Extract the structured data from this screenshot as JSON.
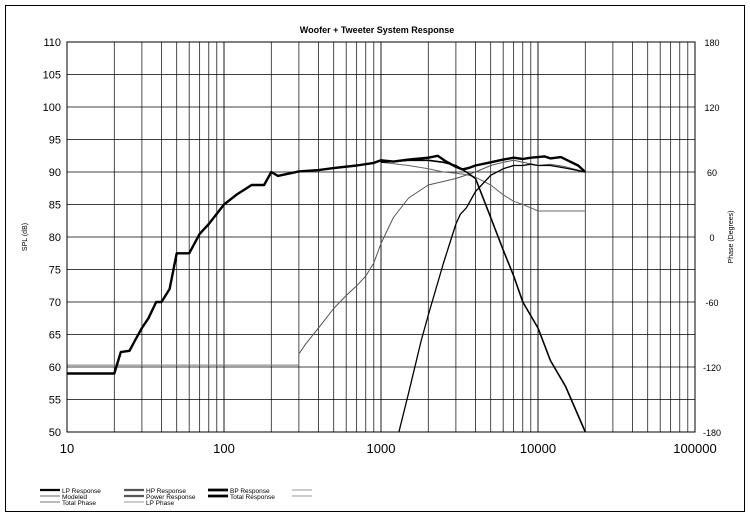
{
  "chart_data": {
    "type": "line",
    "title": "Woofer + Tweeter    System Response",
    "xlabel": "",
    "ylabel": "SPL (dB)",
    "y2label": "Phase (Degrees)",
    "x_scale": "log",
    "xlim": [
      10,
      100000
    ],
    "ylim": [
      50,
      110
    ],
    "y2lim": [
      -180,
      180
    ],
    "x_ticks": [
      "10",
      "100",
      "1000",
      "10000",
      "100000"
    ],
    "y_ticks": [
      "110",
      "105",
      "100",
      "95",
      "90",
      "85",
      "80",
      "75",
      "70",
      "65",
      "60",
      "55",
      "50"
    ],
    "y2_ticks": [
      "180",
      "120",
      "60",
      "0",
      "-60",
      "-120",
      "-180"
    ],
    "grid": true,
    "legend_position": "bottom",
    "legend": [
      "LP Response",
      "HP Response",
      "BP Response",
      "Modeled",
      "Power Response",
      "Total Response",
      "Total Phase",
      "LP Phase"
    ],
    "series": [
      {
        "name": "Total Response",
        "color": "#000000",
        "width": 2.4,
        "x": [
          10,
          20,
          22,
          25,
          27,
          30,
          33,
          37,
          40,
          45,
          50,
          55,
          60,
          70,
          80,
          100,
          120,
          150,
          180,
          200,
          220,
          300,
          400,
          500,
          700,
          900,
          1000,
          1200,
          1500,
          2000,
          2300,
          2600,
          3000,
          3300,
          3600,
          4000,
          5000,
          6000,
          7000,
          8000,
          9000,
          10000,
          11000,
          12000,
          14000,
          16000,
          18000,
          20000
        ],
        "y": [
          59,
          59,
          62.3,
          62.5,
          64,
          66,
          67.5,
          70,
          70,
          72,
          77.5,
          77.5,
          77.5,
          80.5,
          82,
          85,
          86.5,
          88,
          88,
          90,
          89.4,
          90.1,
          90.3,
          90.6,
          91,
          91.4,
          91.8,
          91.6,
          91.9,
          92.2,
          92.5,
          91.6,
          90.8,
          90.4,
          90.6,
          91,
          91.5,
          91.9,
          92.2,
          92,
          92.2,
          92.3,
          92.4,
          92.1,
          92.3,
          91.6,
          91,
          90
        ]
      },
      {
        "name": "LP Response",
        "color": "#000000",
        "width": 1.6,
        "x": [
          1000,
          1500,
          2000,
          2500,
          3000,
          3500,
          4000,
          5000,
          6000,
          7000,
          8000,
          10000,
          12000,
          15000,
          20000
        ],
        "y": [
          91.5,
          91.8,
          91.8,
          91.5,
          91,
          90,
          89,
          83,
          78,
          74,
          70,
          66,
          61,
          57,
          50
        ]
      },
      {
        "name": "HP Response",
        "color": "#000000",
        "width": 1.3,
        "x": [
          1300,
          1500,
          1800,
          2000,
          2500,
          3000,
          3200,
          3500,
          4000,
          5000,
          6000,
          7000,
          8000,
          9000,
          10000,
          12000,
          15000,
          20000
        ],
        "y": [
          50,
          56,
          64,
          68,
          76,
          82,
          83.5,
          84.5,
          87,
          89.5,
          90.5,
          91,
          91,
          91.2,
          91,
          91,
          90.6,
          90
        ]
      },
      {
        "name": "Modeled",
        "color": "#777777",
        "width": 1,
        "x": [
          10,
          100,
          200,
          300
        ],
        "y": [
          60.3,
          60.3,
          60.3,
          60.3
        ]
      },
      {
        "name": "Total Phase",
        "color": "#555555",
        "width": 1,
        "x": [
          300,
          330,
          400,
          500,
          600,
          700,
          800,
          900,
          1000,
          1200,
          1500,
          2000,
          3000,
          4000,
          5000,
          6000,
          7000,
          8000,
          10000,
          12000,
          15000,
          20000
        ],
        "y": [
          62,
          63.5,
          66,
          69,
          71,
          72.5,
          74,
          76,
          79,
          83,
          86,
          88,
          89,
          90,
          91,
          91.5,
          91.8,
          91.5,
          91,
          91.2,
          90.8,
          90
        ]
      },
      {
        "name": "Power Response",
        "color": "#666666",
        "width": 1,
        "x": [
          1000,
          1500,
          2000,
          2500,
          3000,
          3500,
          4000,
          5000,
          6000,
          7000,
          8000,
          9000,
          10000,
          12000,
          15000,
          20000
        ],
        "y": [
          91.5,
          91,
          90.5,
          90,
          89.8,
          89.6,
          89.2,
          88,
          86.5,
          85.5,
          85,
          84.5,
          84,
          84,
          84,
          84
        ]
      }
    ]
  }
}
